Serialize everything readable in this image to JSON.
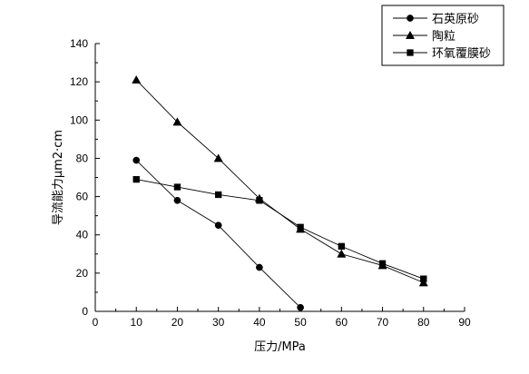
{
  "chart_data": {
    "type": "line",
    "xlabel": "压力/MPa",
    "ylabel": "导流能力μm2·cm",
    "xlim": [
      0,
      90
    ],
    "ylim": [
      0,
      140
    ],
    "x_ticks": [
      0,
      10,
      20,
      30,
      40,
      50,
      60,
      70,
      80,
      90
    ],
    "y_ticks": [
      0,
      20,
      40,
      60,
      80,
      100,
      120,
      140
    ],
    "grid": false,
    "legend_position": "top-right",
    "series": [
      {
        "name": "石英原砂",
        "marker": "circle",
        "x": [
          10,
          20,
          30,
          40,
          50
        ],
        "y": [
          79,
          58,
          45,
          23,
          2
        ]
      },
      {
        "name": "陶粒",
        "marker": "triangle",
        "x": [
          10,
          20,
          30,
          40,
          50,
          60,
          70,
          80
        ],
        "y": [
          121,
          99,
          80,
          59,
          43,
          30,
          24,
          15
        ]
      },
      {
        "name": "环氧覆膜砂",
        "marker": "square",
        "x": [
          10,
          20,
          30,
          40,
          50,
          60,
          70,
          80
        ],
        "y": [
          69,
          65,
          61,
          58,
          44,
          34,
          25,
          17
        ]
      }
    ]
  }
}
